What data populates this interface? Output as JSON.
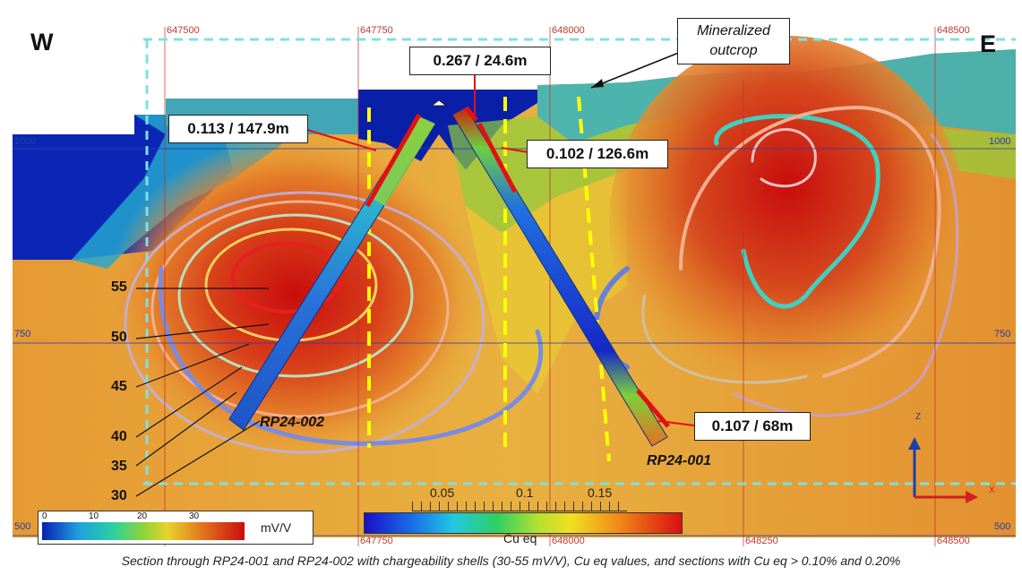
{
  "compass": {
    "west": "W",
    "east": "E"
  },
  "grid_eastings": {
    "top": [
      "647500",
      "647750",
      "648000",
      "648500"
    ],
    "bottom": [
      "647750",
      "648000",
      "648250",
      "648500"
    ]
  },
  "elevations": {
    "left": [
      "1000",
      "750",
      "500"
    ],
    "right": [
      "1000",
      "750",
      "500"
    ]
  },
  "intercepts": {
    "a": "0.267 / 24.6m",
    "b": "0.113 / 147.9m",
    "c": "0.102 / 126.6m",
    "d": "0.107 / 68m"
  },
  "outcrop_label": {
    "line1": "Mineralized",
    "line2": "outcrop"
  },
  "shell_labels": [
    "55",
    "50",
    "45",
    "40",
    "35",
    "30"
  ],
  "drill_holes": {
    "west": "RP24-002",
    "east": "RP24-001"
  },
  "chargeability_legend": {
    "ticks": [
      "0",
      "10",
      "20",
      "30"
    ],
    "unit": "mV/V"
  },
  "cu_legend": {
    "ticks": [
      "0.05",
      "0.1",
      "0.15"
    ],
    "title": "Cu eq"
  },
  "axes_triad": {
    "z": "Z",
    "x": "X"
  },
  "caption": "Section through RP24-001 and RP24-002 with chargeability shells (30-55 mV/V), Cu eq values, and sections with Cu eq > 0.10% and 0.20%",
  "colors": {
    "high": "#c81010",
    "mid": "#e8942a",
    "low": "#8ec63c",
    "background_low": "#0a2fb8",
    "cutoff_line": "#ffff00",
    "intercept_bar": "#e31010"
  }
}
